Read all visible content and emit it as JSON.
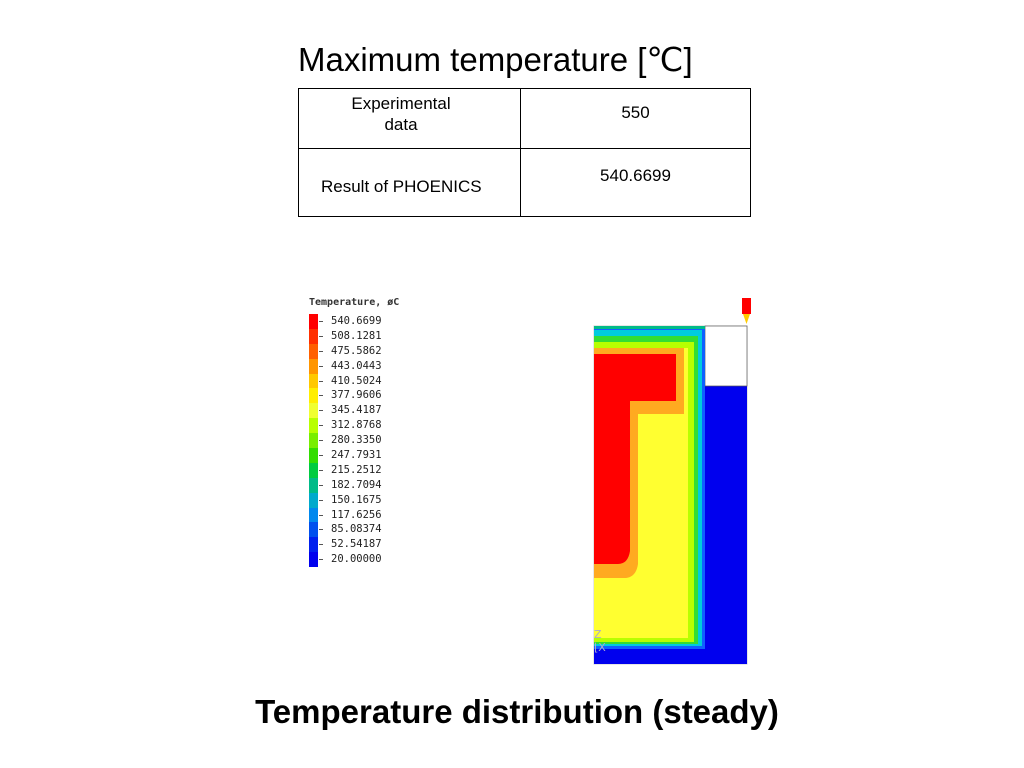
{
  "title": "Maximum temperature [℃]",
  "table": {
    "rows": [
      {
        "label": "Experimental data",
        "value": "550"
      },
      {
        "label": "Result of PHOENICS",
        "value": "540.6699"
      }
    ]
  },
  "legend": {
    "title": "Temperature, øC",
    "levels": [
      {
        "value": "540.6699",
        "color": "#ff0000"
      },
      {
        "value": "508.1281",
        "color": "#ff3000"
      },
      {
        "value": "475.5862",
        "color": "#ff6000"
      },
      {
        "value": "443.0443",
        "color": "#ff9500"
      },
      {
        "value": "410.5024",
        "color": "#ffc800"
      },
      {
        "value": "377.9606",
        "color": "#ffee00"
      },
      {
        "value": "345.4187",
        "color": "#f0ff30"
      },
      {
        "value": "312.8768",
        "color": "#b8ff00"
      },
      {
        "value": "280.3350",
        "color": "#78ee00"
      },
      {
        "value": "247.7931",
        "color": "#33dd00"
      },
      {
        "value": "215.2512",
        "color": "#00cc40"
      },
      {
        "value": "182.7094",
        "color": "#00bb88"
      },
      {
        "value": "150.1675",
        "color": "#00aacc"
      },
      {
        "value": "117.6256",
        "color": "#0088ee"
      },
      {
        "value": "85.08374",
        "color": "#0050ee"
      },
      {
        "value": "52.54187",
        "color": "#0020ee"
      },
      {
        "value": "20.00000",
        "color": "#0000ee"
      }
    ]
  },
  "caption": "Temperature distribution (steady)"
}
